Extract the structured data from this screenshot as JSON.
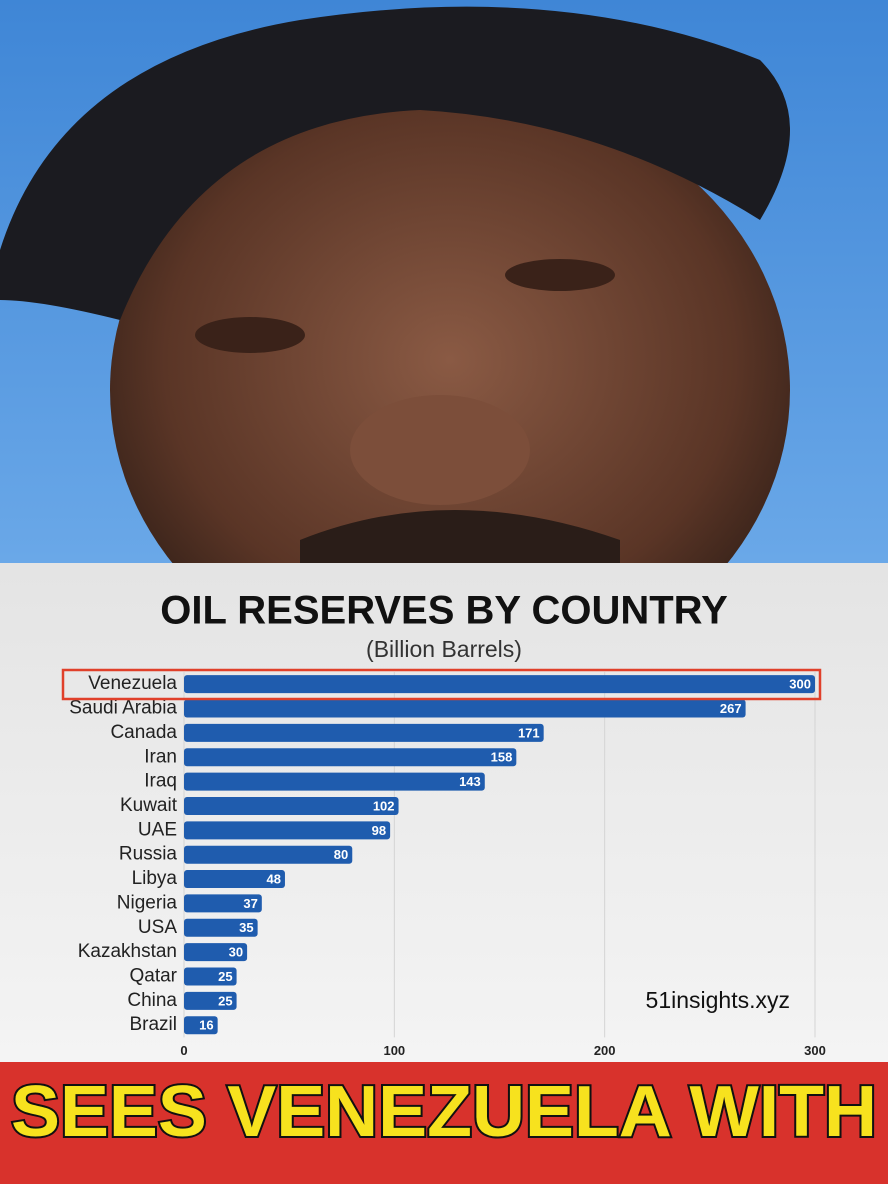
{
  "chart_data": {
    "type": "bar",
    "orientation": "horizontal",
    "title": "OIL RESERVES BY COUNTRY",
    "subtitle": "(Billion Barrels)",
    "categories": [
      "Venezuela",
      "Saudi Arabia",
      "Canada",
      "Iran",
      "Iraq",
      "Kuwait",
      "UAE",
      "Russia",
      "Libya",
      "Nigeria",
      "USA",
      "Kazakhstan",
      "Qatar",
      "China",
      "Brazil"
    ],
    "values": [
      300,
      267,
      171,
      158,
      143,
      102,
      98,
      80,
      48,
      37,
      35,
      30,
      25,
      25,
      16
    ],
    "color": "#1f5cae",
    "xlim": [
      0,
      300
    ],
    "xticks": [
      0,
      100,
      200,
      300
    ],
    "grid": true,
    "watermark": "51insights.xyz"
  },
  "caption": "SEES VENEZUELA WITH"
}
